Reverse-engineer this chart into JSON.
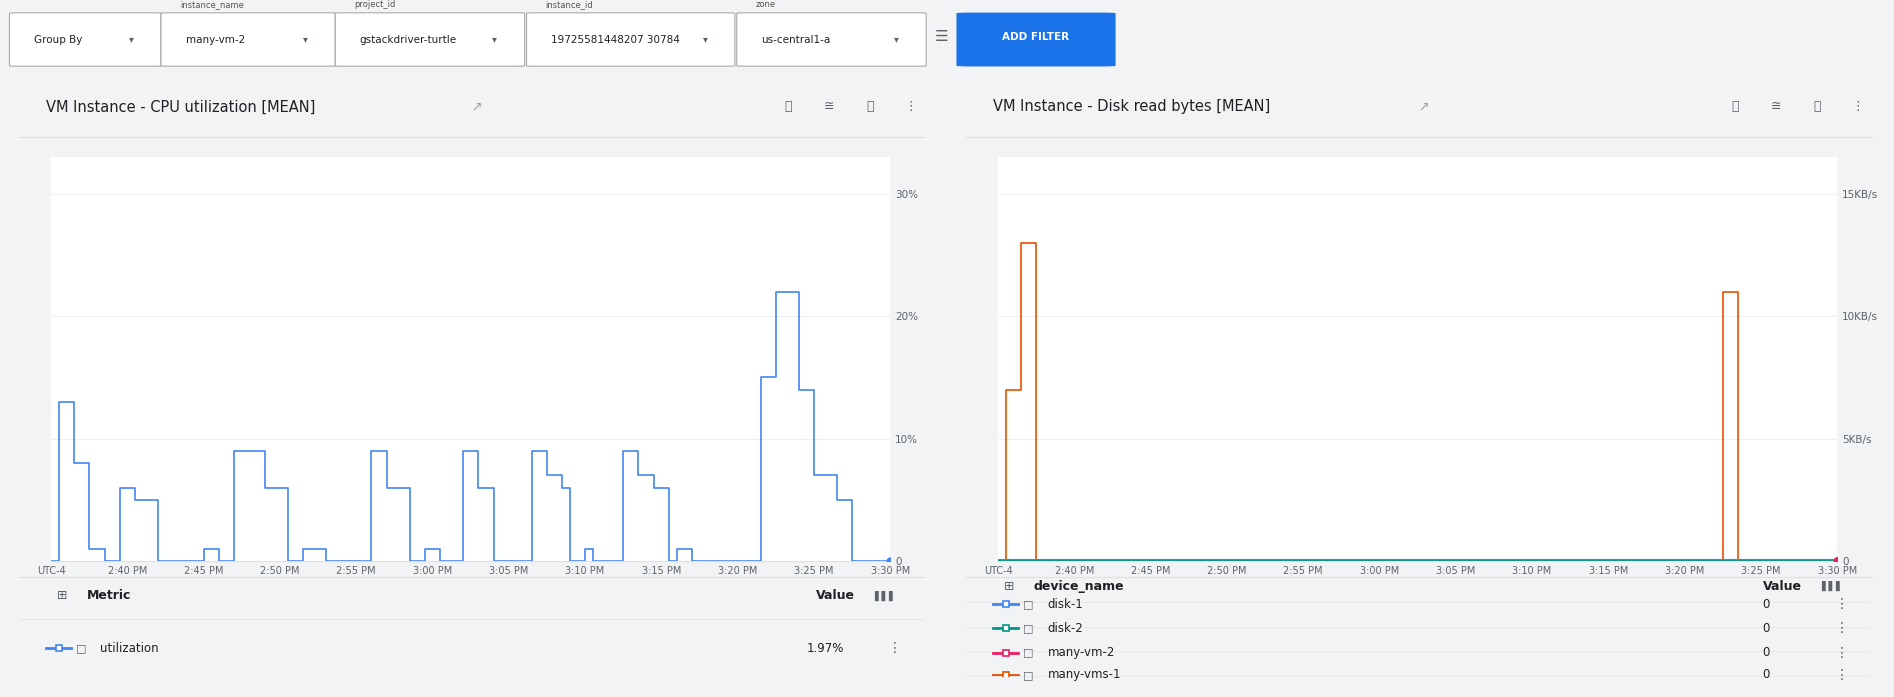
{
  "fig_width": 18.94,
  "fig_height": 6.97,
  "bg_color": "#f1f3f4",
  "panel_bg": "#ffffff",
  "filter_bar": {
    "group_by": "Group By",
    "instance_name_label": "instance_name",
    "instance_name_value": "many-vm-2",
    "project_id_label": "project_id",
    "project_id_value": "gstackdriver-turtle",
    "instance_id_label": "instance_id",
    "instance_id_value": "19725581448207 30784",
    "zone_label": "zone",
    "zone_value": "us-central1-a",
    "add_filter_text": "ADD FILTER",
    "add_filter_color": "#1a73e8"
  },
  "cpu_chart": {
    "title": "VM Instance - CPU utilization [MEAN]",
    "y_ticks": [
      "0",
      "10%",
      "20%",
      "30%"
    ],
    "y_tick_vals": [
      0,
      10,
      20,
      30
    ],
    "x_ticks": [
      "UTC-4",
      "2:40 PM",
      "2:45 PM",
      "2:50 PM",
      "2:55 PM",
      "3:00 PM",
      "3:05 PM",
      "3:10 PM",
      "3:15 PM",
      "3:20 PM",
      "3:25 PM",
      "3:30 PM"
    ],
    "line_color": "#4285f4",
    "metric_label": "utilization",
    "metric_value": "1.97%",
    "x_data": [
      0,
      1,
      2,
      3,
      4,
      5,
      6,
      7,
      8,
      9,
      10,
      11,
      12,
      13,
      14,
      15,
      16,
      17,
      18,
      19,
      20,
      21,
      22,
      23,
      24,
      25,
      26,
      27,
      28,
      29,
      30,
      31,
      32,
      33,
      34,
      35,
      36,
      37,
      38,
      39,
      40,
      41,
      42,
      43,
      44,
      45,
      46,
      47,
      48,
      49,
      50,
      51,
      52,
      53,
      54,
      55,
      56,
      57,
      58,
      59,
      60,
      61,
      62,
      63,
      64,
      65,
      66,
      67,
      68,
      69,
      70,
      71,
      72,
      73,
      74,
      75,
      76,
      77,
      78,
      79,
      80,
      81,
      82,
      83,
      84,
      85,
      86,
      87,
      88,
      89,
      90,
      91,
      92,
      93,
      94,
      95,
      96,
      97,
      98,
      99,
      100,
      101,
      102,
      103,
      104,
      105,
      106,
      107,
      108,
      109,
      110
    ],
    "y_data": [
      0,
      13,
      13,
      8,
      8,
      1,
      1,
      0,
      0,
      6,
      6,
      5,
      5,
      5,
      0,
      0,
      0,
      0,
      0,
      0,
      1,
      1,
      0,
      0,
      9,
      9,
      9,
      9,
      6,
      6,
      6,
      0,
      0,
      1,
      1,
      1,
      0,
      0,
      0,
      0,
      0,
      0,
      9,
      9,
      6,
      6,
      6,
      0,
      0,
      1,
      1,
      0,
      0,
      0,
      9,
      9,
      6,
      6,
      0,
      0,
      0,
      0,
      0,
      9,
      9,
      7,
      7,
      6,
      0,
      0,
      1,
      0,
      0,
      0,
      0,
      9,
      9,
      7,
      7,
      6,
      6,
      0,
      1,
      1,
      0,
      0,
      0,
      0,
      0,
      0,
      0,
      0,
      0,
      15,
      15,
      22,
      22,
      22,
      14,
      14,
      7,
      7,
      7,
      5,
      5,
      0,
      0,
      0,
      0,
      0,
      0
    ]
  },
  "disk_chart": {
    "title": "VM Instance - Disk read bytes [MEAN]",
    "y_ticks": [
      "0",
      "5KB/s",
      "10KB/s",
      "15KB/s"
    ],
    "y_tick_vals": [
      0,
      5,
      10,
      15
    ],
    "x_ticks": [
      "UTC-4",
      "2:40 PM",
      "2:45 PM",
      "2:50 PM",
      "2:55 PM",
      "3:00 PM",
      "3:05 PM",
      "3:10 PM",
      "3:15 PM",
      "3:20 PM",
      "3:25 PM",
      "3:30 PM"
    ],
    "lines": [
      {
        "label": "disk-1",
        "color": "#4285f4"
      },
      {
        "label": "disk-2",
        "color": "#009688"
      },
      {
        "label": "many-vm-2",
        "color": "#e91e63"
      },
      {
        "label": "many-vms-1",
        "color": "#e65100"
      }
    ],
    "orange_x": [
      0,
      1,
      2,
      3,
      4,
      5,
      6,
      7,
      8,
      9,
      10,
      11,
      12,
      13,
      14,
      15,
      16,
      17,
      18,
      19,
      20,
      21,
      22,
      23,
      24,
      25,
      26,
      27,
      28,
      29,
      30,
      31,
      32,
      33,
      34,
      35,
      36,
      37,
      38,
      39,
      40,
      41,
      42,
      43,
      44,
      45,
      46,
      47,
      48,
      49,
      50,
      51,
      52,
      53,
      54,
      55,
      56,
      57,
      58,
      59,
      60,
      61,
      62,
      63,
      64,
      65,
      66,
      67,
      68,
      69,
      70,
      71,
      72,
      73,
      74,
      75,
      76,
      77,
      78,
      79,
      80,
      81,
      82,
      83,
      84,
      85,
      86,
      87,
      88,
      89,
      90,
      91,
      92,
      93,
      94,
      95,
      96,
      97,
      98,
      99,
      100,
      101,
      102,
      103,
      104,
      105,
      106,
      107,
      108,
      109,
      110
    ],
    "orange_y": [
      0,
      7,
      7,
      13,
      13,
      0,
      0,
      0,
      0,
      0,
      0,
      0,
      0,
      0,
      0,
      0,
      0,
      0,
      0,
      0,
      0,
      0,
      0,
      0,
      0,
      0,
      0,
      0,
      0,
      0,
      0,
      0,
      0,
      0,
      0,
      0,
      0,
      0,
      0,
      0,
      0,
      0,
      0,
      0,
      0,
      0,
      0,
      0,
      0,
      0,
      0,
      0,
      0,
      0,
      0,
      0,
      0,
      0,
      0,
      0,
      0,
      0,
      0,
      0,
      0,
      0,
      0,
      0,
      0,
      0,
      0,
      0,
      0,
      0,
      0,
      0,
      0,
      0,
      0,
      0,
      0,
      0,
      0,
      0,
      0,
      0,
      0,
      0,
      0,
      0,
      0,
      0,
      0,
      0,
      0,
      11,
      11,
      0,
      0,
      0,
      0,
      0,
      0,
      0,
      0,
      0,
      0,
      0,
      0,
      0,
      0
    ],
    "legend_values": [
      "0",
      "0",
      "0",
      "0"
    ]
  }
}
